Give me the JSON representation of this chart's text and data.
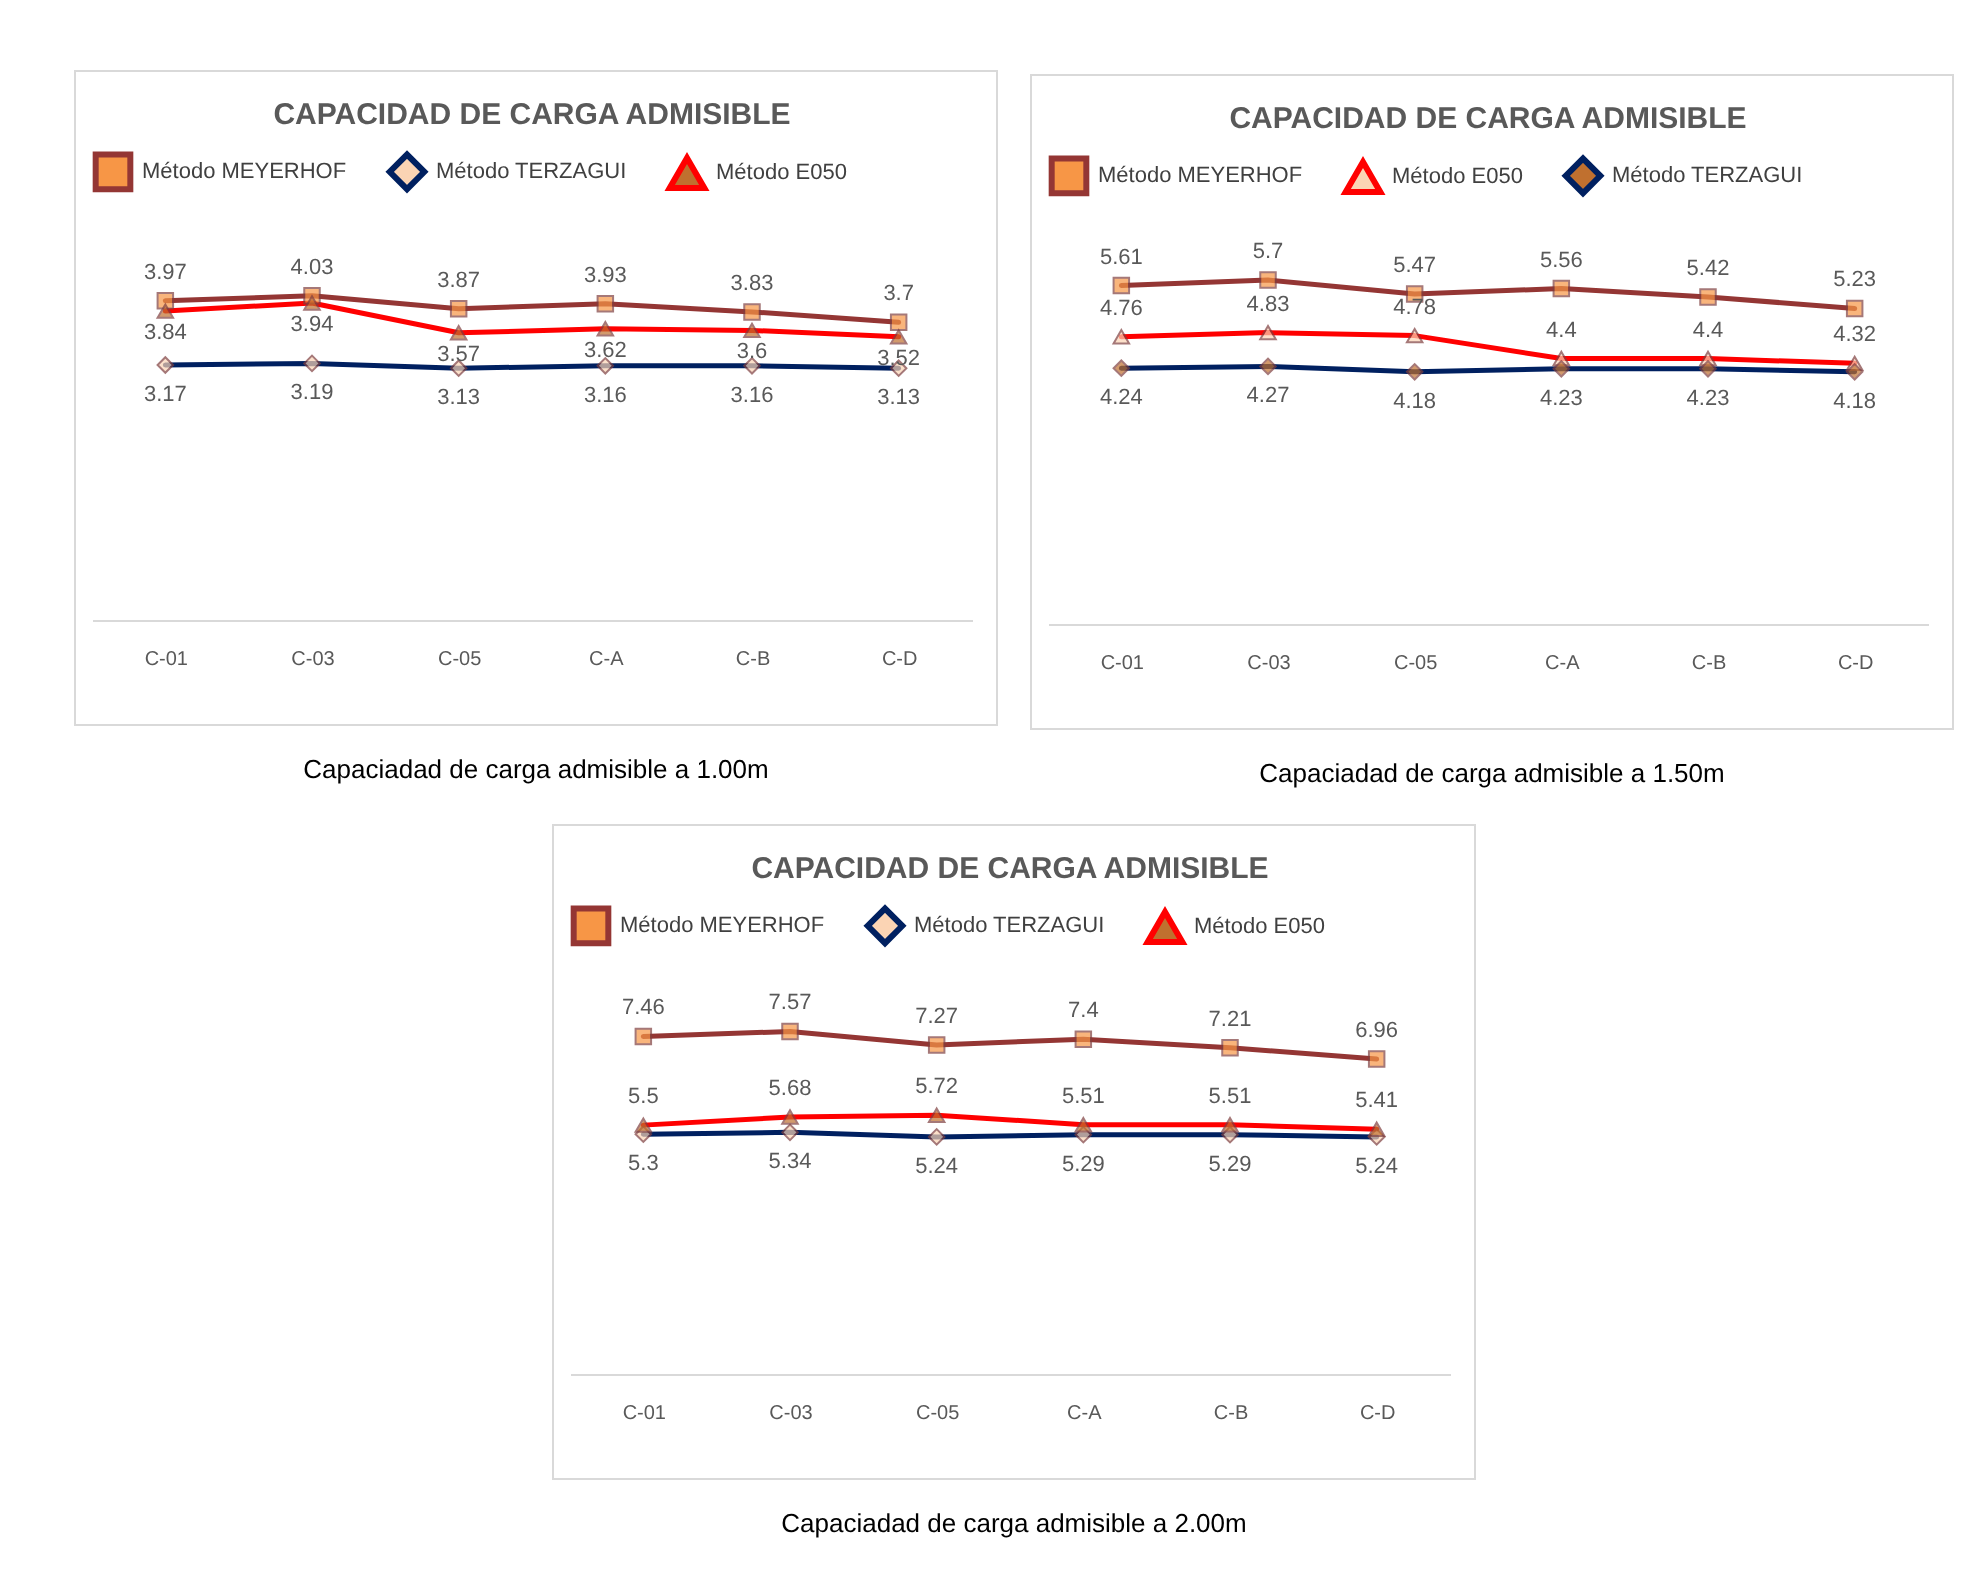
{
  "chart_data": [
    {
      "type": "line",
      "title": "CAPACIDAD DE CARGA ADMISIBLE",
      "categories": [
        "C-01",
        "C-03",
        "C-05",
        "C-A",
        "C-B",
        "C-D"
      ],
      "grid": false,
      "legend": "top",
      "tick_labels": "x",
      "data_labels": true,
      "annotations": [
        "Capaciadad de carga admisible a 1.00m"
      ],
      "series": [
        {
          "name": "Método MEYERHOF",
          "color": "#943634",
          "marker": "square",
          "values": [
            3.97,
            4.03,
            3.87,
            3.93,
            3.83,
            3.7
          ]
        },
        {
          "name": "Método TERZAGUI",
          "color": "#002060",
          "marker": "diamond",
          "values": [
            3.17,
            3.19,
            3.13,
            3.16,
            3.16,
            3.13
          ]
        },
        {
          "name": "Método E050",
          "color": "#ff0000",
          "marker": "triangle",
          "values": [
            3.84,
            3.94,
            3.57,
            3.62,
            3.6,
            3.52
          ]
        }
      ]
    },
    {
      "type": "line",
      "title": "CAPACIDAD DE CARGA ADMISIBLE",
      "categories": [
        "C-01",
        "C-03",
        "C-05",
        "C-A",
        "C-B",
        "C-D"
      ],
      "grid": false,
      "legend": "top",
      "tick_labels": "x",
      "data_labels": true,
      "annotations": [
        "Capaciadad de carga admisible a 1.50m"
      ],
      "series": [
        {
          "name": "Método MEYERHOF",
          "color": "#943634",
          "marker": "square",
          "values": [
            5.61,
            5.7,
            5.47,
            5.56,
            5.42,
            5.23
          ]
        },
        {
          "name": "Método E050",
          "color": "#ff0000",
          "marker": "triangle",
          "values": [
            4.76,
            4.83,
            4.78,
            4.4,
            4.4,
            4.32
          ]
        },
        {
          "name": "Método TERZAGUI",
          "color": "#002060",
          "marker": "diamond",
          "values": [
            4.24,
            4.27,
            4.18,
            4.23,
            4.23,
            4.18
          ]
        }
      ]
    },
    {
      "type": "line",
      "title": "CAPACIDAD DE CARGA ADMISIBLE",
      "categories": [
        "C-01",
        "C-03",
        "C-05",
        "C-A",
        "C-B",
        "C-D"
      ],
      "grid": false,
      "legend": "top",
      "tick_labels": "x",
      "data_labels": true,
      "annotations": [
        "Capaciadad de carga admisible a 2.00m"
      ],
      "series": [
        {
          "name": "Método MEYERHOF",
          "color": "#943634",
          "marker": "square",
          "values": [
            7.46,
            7.57,
            7.27,
            7.4,
            7.21,
            6.96
          ]
        },
        {
          "name": "Método TERZAGUI",
          "color": "#002060",
          "marker": "diamond",
          "values": [
            5.3,
            5.34,
            5.24,
            5.29,
            5.29,
            5.24
          ]
        },
        {
          "name": "Método E050",
          "color": "#ff0000",
          "marker": "triangle",
          "values": [
            5.5,
            5.68,
            5.72,
            5.51,
            5.51,
            5.41
          ]
        }
      ]
    }
  ]
}
